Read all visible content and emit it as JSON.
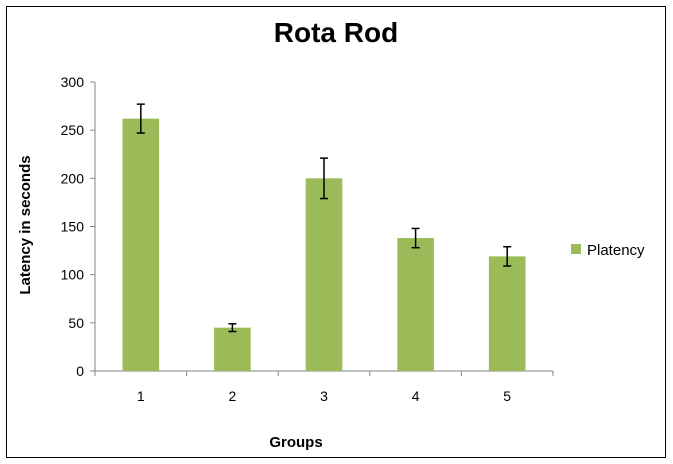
{
  "chart_data": {
    "type": "bar",
    "title": "Rota Rod",
    "xlabel": "Groups",
    "ylabel": "Latency in seconds",
    "categories": [
      "1",
      "2",
      "3",
      "4",
      "5"
    ],
    "series": [
      {
        "name": "Platency",
        "values": [
          262,
          45,
          200,
          138,
          119
        ],
        "error": [
          15,
          4,
          21,
          10,
          10
        ],
        "color": "#9bbb59"
      }
    ],
    "ylim": [
      0,
      300
    ],
    "yticks": [
      0,
      50,
      100,
      150,
      200,
      250,
      300
    ],
    "grid": false,
    "legend_position": "right",
    "error_bars": true
  }
}
